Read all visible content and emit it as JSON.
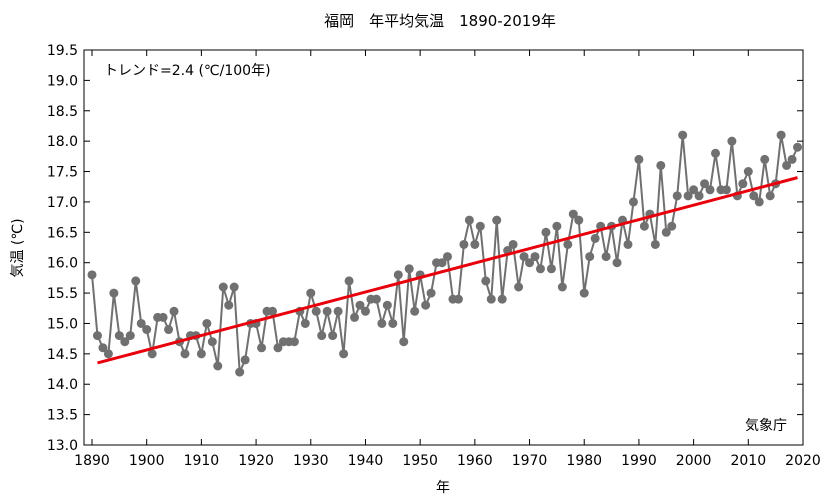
{
  "chart_data": {
    "type": "line",
    "title": "福岡　年平均気温　1890-2019年",
    "xlabel": "年",
    "ylabel": "気温 (℃)",
    "xlim": [
      1888,
      2020
    ],
    "ylim": [
      13.0,
      19.5
    ],
    "x_ticks": [
      1890,
      1900,
      1910,
      1920,
      1930,
      1940,
      1950,
      1960,
      1970,
      1980,
      1990,
      2000,
      2010,
      2020
    ],
    "y_ticks": [
      "13.0",
      "13.5",
      "14.0",
      "14.5",
      "15.0",
      "15.5",
      "16.0",
      "16.5",
      "17.0",
      "17.5",
      "18.0",
      "18.5",
      "19.0",
      "19.5"
    ],
    "grid": false,
    "annotation": "トレンド=2.4 (℃/100年)",
    "source": "気象庁",
    "series": [
      {
        "name": "年平均気温",
        "color": "#707070",
        "x_start": 1890,
        "values": [
          15.8,
          14.8,
          14.6,
          14.5,
          15.5,
          14.8,
          14.7,
          14.8,
          15.7,
          15.0,
          14.9,
          14.5,
          15.1,
          15.1,
          14.9,
          15.2,
          14.7,
          14.5,
          14.8,
          14.8,
          14.5,
          15.0,
          14.7,
          14.3,
          15.6,
          15.3,
          15.6,
          14.2,
          14.4,
          15.0,
          15.0,
          14.6,
          15.2,
          15.2,
          14.6,
          14.7,
          14.7,
          14.7,
          15.2,
          15.0,
          15.5,
          15.2,
          14.8,
          15.2,
          14.8,
          15.2,
          14.5,
          15.7,
          15.1,
          15.3,
          15.2,
          15.4,
          15.4,
          15.0,
          15.3,
          15.0,
          15.8,
          14.7,
          15.9,
          15.2,
          15.8,
          15.3,
          15.5,
          16.0,
          16.0,
          16.1,
          15.4,
          15.4,
          16.3,
          16.7,
          16.3,
          16.6,
          15.7,
          15.4,
          16.7,
          15.4,
          16.2,
          16.3,
          15.6,
          16.1,
          16.0,
          16.1,
          15.9,
          16.5,
          15.9,
          16.6,
          15.6,
          16.3,
          16.8,
          16.7,
          15.5,
          16.1,
          16.4,
          16.6,
          16.1,
          16.6,
          16.0,
          16.7,
          16.3,
          17.0,
          17.7,
          16.6,
          16.8,
          16.3,
          17.6,
          16.5,
          16.6,
          17.1,
          18.1,
          17.1,
          17.2,
          17.1,
          17.3,
          17.2,
          17.8,
          17.2,
          17.2,
          18.0,
          17.1,
          17.3,
          17.5,
          17.1,
          17.0,
          17.7,
          17.1,
          17.3,
          18.1,
          17.6,
          17.7,
          17.9
        ]
      },
      {
        "name": "トレンド",
        "color": "#e8000b",
        "type": "linear",
        "x": [
          1891,
          2019
        ],
        "y": [
          14.35,
          17.4
        ]
      }
    ]
  }
}
